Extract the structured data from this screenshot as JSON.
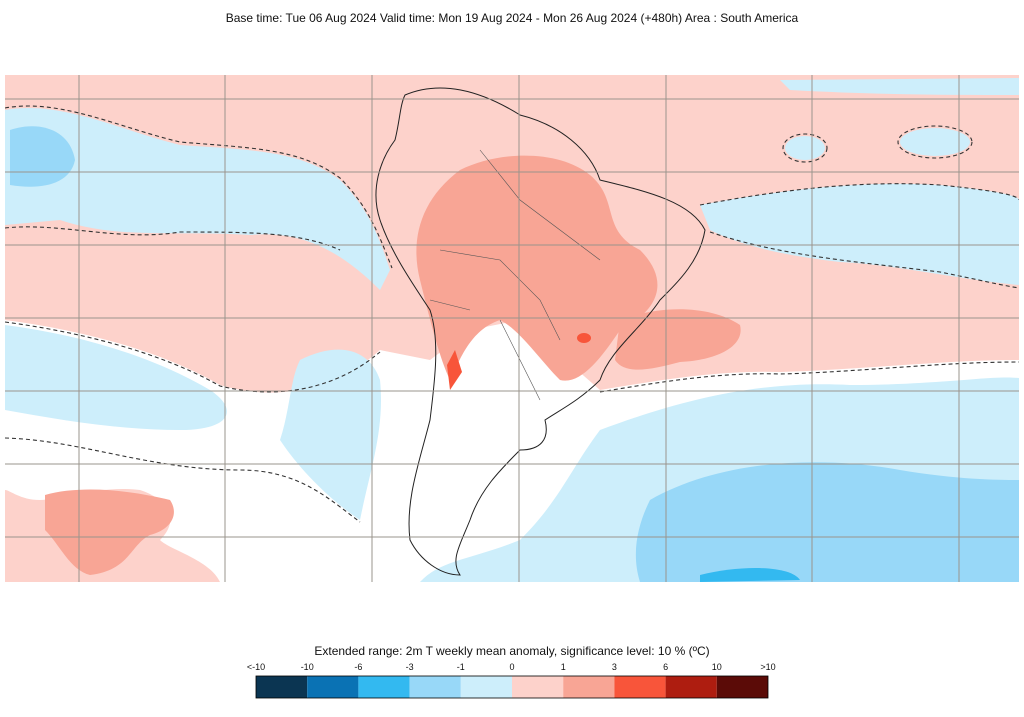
{
  "header": {
    "title": "Base time: Tue 06 Aug 2024 Valid time: Mon 19 Aug 2024 - Mon 26 Aug 2024 (+480h) Area : South America"
  },
  "legend": {
    "caption": "Extended range: 2m T weekly mean anomaly, significance level: 10 % (ºC)",
    "labels": [
      "<-10",
      "-10",
      "-6",
      "-3",
      "-1",
      "0",
      "1",
      "3",
      "6",
      "10",
      ">10"
    ],
    "colors": [
      "#0b3552",
      "#0a72b4",
      "#33b9f0",
      "#98d8f8",
      "#cdeefb",
      "#fdd2cb",
      "#f8a595",
      "#f8553a",
      "#ae1d10",
      "#5b0b07"
    ]
  }
}
